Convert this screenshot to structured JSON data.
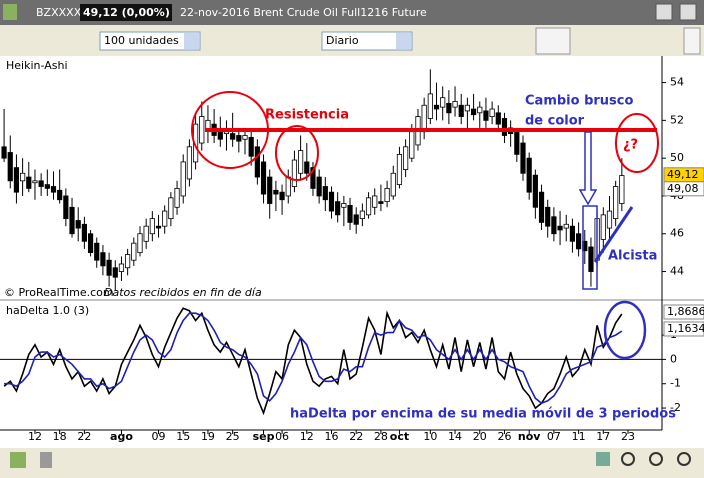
{
  "toolbar": {
    "symbol": "BZXXXX",
    "price": "49,12 (0,00%)",
    "title": "22-nov-2016 Brent Crude Oil Full1216 Future",
    "quantity": "100 unidades",
    "period": "Diario"
  },
  "annotations": {
    "resistencia": "Resistencia",
    "cambio": [
      "Cambio brusco",
      "de color"
    ],
    "question": "¿?",
    "alcista": "Alcista",
    "hadelta": "haDelta por encima de su media móvil de 3 periodos"
  },
  "chart_data": [
    {
      "type": "candlestick",
      "title": "Heikin-Ashi",
      "source": [
        "© ProRealTime.com",
        "Datos recibidos en fin de día"
      ],
      "up_color": "#ffffff",
      "down_color": "#000000",
      "xlim": [
        -0.66,
        106.5
      ],
      "ylim": [
        42.6,
        55.3
      ],
      "yticks": [
        44,
        46,
        48,
        50,
        52,
        54
      ],
      "open": [
        50.6,
        50.3,
        49.5,
        48.8,
        49.0,
        48.7,
        48.8,
        48.6,
        48.5,
        48.3,
        48.0,
        47.4,
        46.7,
        46.5,
        46.0,
        45.5,
        45.0,
        44.6,
        44.2,
        44.0,
        44.2,
        44.6,
        45.0,
        45.6,
        46.0,
        46.4,
        46.4,
        46.8,
        47.4,
        48.0,
        48.9,
        49.8,
        50.8,
        51.5,
        51.8,
        51.5,
        51.3,
        51.3,
        51.2,
        51.0,
        51.1,
        50.6,
        49.8,
        49.0,
        48.3,
        48.2,
        48.0,
        48.5,
        49.2,
        49.8,
        49.5,
        49.0,
        48.5,
        48.2,
        47.7,
        47.4,
        47.5,
        47.0,
        46.8,
        47.0,
        47.4,
        47.7,
        47.7,
        48.0,
        48.6,
        49.4,
        50.0,
        50.7,
        51.4,
        52.1,
        52.8,
        52.7,
        52.9,
        52.7,
        52.8,
        52.5,
        52.6,
        52.4,
        52.5,
        52.2,
        52.4,
        52.1,
        51.6,
        51.4,
        50.8,
        50.0,
        49.1,
        48.2,
        47.4,
        46.9,
        46.4,
        46.3,
        46.4,
        46.0,
        45.6,
        45.3,
        44.6,
        45.7,
        46.3,
        46.8,
        47.6
      ],
      "high": [
        52.6,
        51.2,
        50.2,
        50.0,
        49.8,
        49.4,
        49.2,
        49.4,
        49.3,
        49.4,
        48.4,
        47.9,
        47.4,
        46.9,
        46.2,
        45.8,
        45.4,
        45.0,
        44.6,
        44.8,
        45.2,
        45.8,
        46.4,
        46.8,
        47.2,
        47.0,
        47.5,
        48.2,
        48.8,
        50.2,
        51.0,
        52.4,
        53.0,
        52.8,
        52.6,
        52.2,
        52.0,
        52.4,
        51.6,
        51.6,
        51.4,
        51.0,
        50.2,
        49.4,
        48.8,
        48.6,
        49.4,
        50.4,
        51.2,
        50.8,
        49.8,
        49.4,
        49.0,
        48.5,
        48.2,
        48.0,
        47.9,
        47.4,
        47.6,
        48.2,
        48.4,
        48.6,
        48.8,
        49.6,
        50.6,
        51.0,
        51.8,
        52.6,
        53.2,
        54.7,
        54.0,
        53.8,
        53.6,
        53.8,
        53.4,
        53.2,
        53.4,
        53.0,
        53.2,
        53.0,
        52.8,
        52.4,
        52.0,
        51.6,
        51.2,
        50.3,
        49.4,
        48.6,
        47.8,
        47.4,
        47.2,
        47.0,
        46.8,
        46.6,
        46.2,
        45.8,
        47.2,
        47.4,
        48.0,
        48.8,
        50.0
      ],
      "low": [
        49.8,
        48.4,
        47.6,
        48.0,
        48.2,
        47.8,
        48.0,
        48.0,
        47.8,
        47.6,
        46.4,
        45.8,
        45.6,
        45.2,
        44.8,
        44.2,
        43.8,
        43.2,
        43.0,
        43.5,
        43.8,
        44.3,
        44.8,
        45.2,
        45.6,
        45.8,
        46.0,
        46.4,
        47.0,
        47.6,
        48.5,
        49.4,
        50.4,
        50.8,
        50.8,
        50.6,
        50.4,
        50.6,
        50.3,
        50.2,
        49.6,
        48.6,
        47.6,
        46.8,
        47.2,
        47.0,
        47.6,
        48.2,
        48.8,
        48.8,
        48.0,
        47.6,
        47.2,
        46.8,
        46.6,
        46.4,
        46.2,
        46.0,
        46.4,
        46.8,
        47.0,
        47.2,
        47.4,
        47.8,
        48.4,
        49.0,
        49.8,
        50.4,
        51.0,
        51.8,
        52.0,
        52.0,
        51.8,
        52.2,
        51.8,
        51.6,
        52.0,
        51.6,
        51.6,
        51.8,
        51.4,
        50.8,
        50.6,
        49.8,
        48.8,
        47.8,
        46.8,
        46.2,
        45.8,
        45.6,
        45.4,
        45.6,
        45.0,
        44.8,
        44.4,
        43.2,
        44.2,
        45.0,
        45.6,
        46.4,
        47.2
      ],
      "close": [
        50.0,
        48.8,
        48.2,
        49.2,
        48.4,
        48.8,
        48.5,
        48.4,
        48.2,
        47.8,
        46.8,
        46.0,
        46.3,
        45.6,
        45.0,
        44.6,
        44.3,
        43.8,
        43.7,
        44.4,
        44.9,
        45.5,
        46.0,
        46.4,
        46.8,
        46.3,
        47.2,
        47.9,
        48.4,
        49.8,
        50.6,
        51.8,
        52.2,
        52.0,
        51.2,
        51.0,
        51.4,
        51.0,
        50.9,
        51.2,
        50.1,
        49.0,
        48.1,
        47.6,
        48.1,
        47.8,
        49.0,
        49.9,
        50.4,
        49.2,
        48.4,
        48.0,
        47.8,
        47.2,
        47.0,
        47.6,
        46.6,
        46.5,
        47.2,
        47.9,
        48.0,
        47.6,
        48.4,
        49.2,
        50.2,
        50.6,
        51.4,
        52.2,
        52.8,
        53.4,
        52.6,
        53.2,
        52.4,
        53.0,
        52.2,
        52.8,
        52.3,
        52.7,
        52.0,
        52.6,
        51.8,
        51.2,
        51.3,
        50.2,
        49.2,
        48.2,
        47.4,
        46.6,
        46.4,
        46.0,
        46.2,
        46.5,
        45.6,
        45.2,
        45.1,
        44.0,
        46.8,
        47.0,
        47.2,
        48.5,
        49.08
      ],
      "last_close_label": "49,08",
      "last_price": {
        "value": 49.12,
        "label": "49,12"
      }
    },
    {
      "type": "line",
      "title": "haDelta 1.0 (3)",
      "xlim": [
        -0.66,
        106.5
      ],
      "ylim": [
        -2.82,
        2.36
      ],
      "yticks": [
        1,
        0,
        -1,
        -2
      ],
      "xticks": [
        {
          "value": 5,
          "label": "12"
        },
        {
          "value": 9,
          "label": "18"
        },
        {
          "value": 13,
          "label": "22"
        },
        {
          "value": 19,
          "label": "ago"
        },
        {
          "value": 25,
          "label": "09"
        },
        {
          "value": 29,
          "label": "15"
        },
        {
          "value": 33,
          "label": "19"
        },
        {
          "value": 37,
          "label": "25"
        },
        {
          "value": 42,
          "label": "sep"
        },
        {
          "value": 45,
          "label": "06"
        },
        {
          "value": 49,
          "label": "12"
        },
        {
          "value": 53,
          "label": "16"
        },
        {
          "value": 57,
          "label": "22"
        },
        {
          "value": 61,
          "label": "28"
        },
        {
          "value": 64,
          "label": "oct"
        },
        {
          "value": 69,
          "label": "10"
        },
        {
          "value": 73,
          "label": "14"
        },
        {
          "value": 77,
          "label": "20"
        },
        {
          "value": 81,
          "label": "26"
        },
        {
          "value": 85,
          "label": "nov"
        },
        {
          "value": 89,
          "label": "07"
        },
        {
          "value": 93,
          "label": "11"
        },
        {
          "value": 97,
          "label": "17"
        },
        {
          "value": 101,
          "label": "23"
        }
      ],
      "series": [
        {
          "color": "#000000",
          "last_label": "1,8686",
          "values": [
            -1.1,
            -0.9,
            -1.3,
            -0.6,
            0.2,
            0.6,
            0.1,
            0.3,
            -0.2,
            0.4,
            -0.3,
            -0.8,
            -0.5,
            -1.1,
            -0.9,
            -1.3,
            -0.8,
            -1.4,
            -1.1,
            -0.2,
            0.3,
            0.8,
            1.4,
            0.9,
            0.2,
            -0.3,
            0.5,
            1.1,
            1.7,
            2.1,
            2.0,
            1.6,
            1.9,
            1.2,
            0.6,
            0.3,
            0.7,
            0.2,
            -0.3,
            0.4,
            -0.6,
            -1.6,
            -2.2,
            -1.4,
            -0.5,
            -0.8,
            0.6,
            1.2,
            0.9,
            -0.2,
            -0.9,
            -1.1,
            -0.8,
            -0.7,
            -1.0,
            0.4,
            -0.8,
            -0.6,
            0.5,
            1.7,
            1.2,
            0.2,
            1.9,
            1.3,
            1.6,
            0.9,
            1.1,
            0.7,
            1.2,
            0.4,
            -0.3,
            0.6,
            -0.4,
            0.9,
            -0.5,
            0.8,
            -0.3,
            0.7,
            -0.4,
            0.9,
            -0.5,
            -0.8,
            0.3,
            -0.6,
            -1.2,
            -1.5,
            -2.0,
            -1.8,
            -1.4,
            -1.2,
            -0.6,
            0.1,
            -0.7,
            -0.4,
            0.4,
            -0.2,
            1.4,
            0.5,
            0.9,
            1.5,
            1.8686
          ]
        },
        {
          "color": "#2020b0",
          "last_label": "1,1634",
          "values": [
            -1.0,
            -1.0,
            -1.1,
            -0.9,
            -0.6,
            0.1,
            0.3,
            0.3,
            0.1,
            0.2,
            0.0,
            -0.2,
            -0.5,
            -0.8,
            -0.8,
            -1.1,
            -1.0,
            -1.2,
            -1.1,
            -0.9,
            -0.3,
            0.3,
            0.8,
            1.0,
            0.8,
            0.3,
            0.1,
            0.4,
            1.1,
            1.6,
            1.9,
            1.9,
            1.8,
            1.6,
            1.2,
            0.7,
            0.5,
            0.4,
            0.2,
            0.1,
            -0.2,
            -0.6,
            -1.5,
            -1.7,
            -1.4,
            -0.9,
            -0.2,
            0.3,
            0.9,
            0.6,
            -0.1,
            -0.7,
            -0.9,
            -0.9,
            -0.8,
            -0.4,
            -0.5,
            -0.3,
            -0.3,
            0.5,
            1.1,
            1.0,
            1.1,
            1.1,
            1.6,
            1.3,
            1.2,
            0.9,
            1.0,
            0.8,
            0.4,
            0.2,
            0.0,
            0.4,
            0.0,
            0.4,
            0.0,
            0.4,
            0.0,
            0.4,
            0.0,
            -0.1,
            -0.3,
            -0.4,
            -0.5,
            -1.1,
            -1.6,
            -1.8,
            -1.7,
            -1.5,
            -1.1,
            -0.6,
            -0.4,
            -0.3,
            -0.2,
            -0.1,
            0.5,
            0.6,
            0.9,
            1.0,
            1.1634
          ]
        }
      ]
    }
  ]
}
